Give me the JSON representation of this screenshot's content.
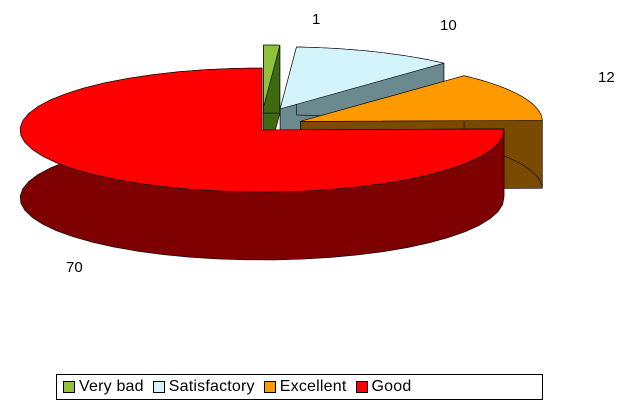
{
  "chart_data": {
    "type": "pie",
    "title": "",
    "categories": [
      "Very bad",
      "Satisfactory",
      "Excellent",
      "Good"
    ],
    "values": [
      1,
      10,
      12,
      70
    ],
    "colors": {
      "Very bad": "#8fc13a",
      "Satisfactory": "#d4f4fb",
      "Excellent": "#ff9900",
      "Good": "#ff0000"
    },
    "side_colors": {
      "Very bad": "#3f6a12",
      "Satisfactory": "#6a8a90",
      "Excellent": "#7a4a00",
      "Good": "#7f0000"
    },
    "three_d": true,
    "exploded": true,
    "data_labels": [
      "1",
      "10",
      "12",
      "70"
    ],
    "legend_position": "bottom"
  }
}
